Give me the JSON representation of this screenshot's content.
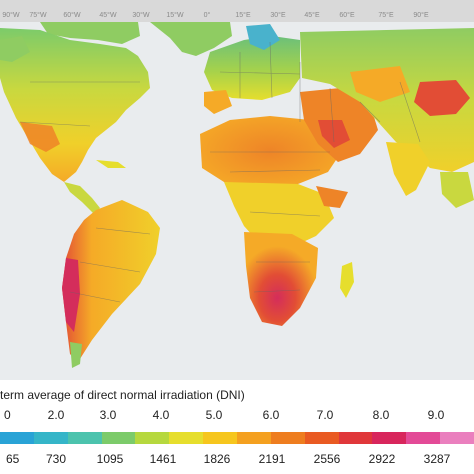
{
  "longitude_labels": [
    "90°W",
    "75°W",
    "60°W",
    "45°W",
    "30°W",
    "15°W",
    "0°",
    "15°E",
    "30°E",
    "45°E",
    "60°E",
    "75°E",
    "90°E"
  ],
  "legend": {
    "title": "term average of direct normal irradiation (DNI)",
    "class_labels": [
      "0",
      "2.0",
      "3.0",
      "4.0",
      "5.0",
      "6.0",
      "7.0",
      "8.0",
      "9.0"
    ],
    "value_labels": [
      "65",
      "730",
      "1095",
      "1461",
      "1826",
      "2191",
      "2556",
      "2922",
      "3287"
    ],
    "colors": [
      "#29a3d6",
      "#35b5c8",
      "#4cc3ad",
      "#7ccb6a",
      "#b6d83e",
      "#e6de2d",
      "#f6c61e",
      "#f4a020",
      "#ee7d1f",
      "#e95a22",
      "#e0373a",
      "#d8265c",
      "#e34a97",
      "#ea7fbe"
    ]
  },
  "colors": {
    "ocean": "#e9ecee",
    "top_strip": "#d9d9d9",
    "high_arctic": "#49b2cc",
    "boreal": "#8fcc62",
    "temperate": "#c9d83f",
    "moderate": "#f0d02a",
    "sunny": "#f5aa27",
    "very_sunny": "#ee8427",
    "extreme": "#e24d35",
    "peak": "#d42d5b",
    "border_lines": "#666666"
  }
}
